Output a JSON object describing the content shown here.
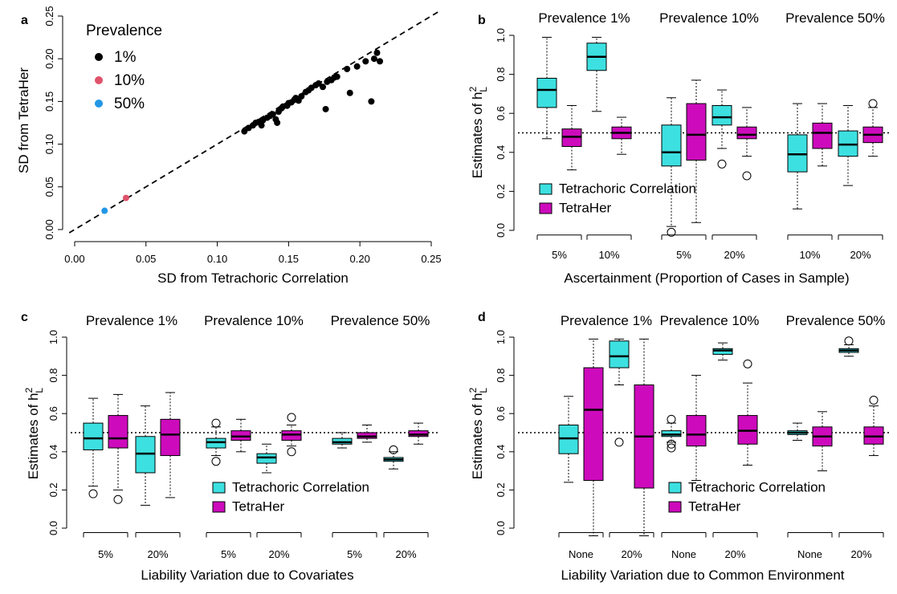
{
  "chart_data": [
    {
      "panel": "a",
      "type": "scatter",
      "xlabel": "SD from Tetrachoric Correlation",
      "ylabel": "SD from TetraHer",
      "xlim": [
        -0.0073,
        0.2562
      ],
      "ylim": [
        -0.0038,
        0.2594
      ],
      "xticks": [
        {
          "value": 0,
          "label": "0.00"
        },
        0.05,
        {
          "value": 0.1,
          "label": "0.10"
        },
        0.15,
        {
          "value": 0.2,
          "label": "0.20"
        },
        0.25
      ],
      "yticks": [
        {
          "value": 0,
          "label": "0.00"
        },
        0.05,
        {
          "value": 0.1,
          "label": "0.10"
        },
        0.15,
        {
          "value": 0.2,
          "label": "0.20"
        },
        0.25
      ],
      "diagonal": true,
      "legend_title": "Prevalence",
      "series": [
        {
          "name": "1%",
          "color": "#000000",
          "x": [
            0.119,
            0.122,
            0.125,
            0.127,
            0.129,
            0.131,
            0.132,
            0.135,
            0.137,
            0.139,
            0.141,
            0.142,
            0.143,
            0.145,
            0.146,
            0.149,
            0.15,
            0.152,
            0.154,
            0.155,
            0.157,
            0.159,
            0.162,
            0.164,
            0.166,
            0.169,
            0.171,
            0.174,
            0.176,
            0.177,
            0.18,
            0.182,
            0.184,
            0.191,
            0.193,
            0.198,
            0.204,
            0.208,
            0.21,
            0.212,
            0.214
          ],
          "y": [
            0.115,
            0.119,
            0.122,
            0.125,
            0.126,
            0.122,
            0.128,
            0.131,
            0.133,
            0.135,
            0.129,
            0.125,
            0.138,
            0.142,
            0.144,
            0.145,
            0.148,
            0.149,
            0.152,
            0.154,
            0.151,
            0.156,
            0.161,
            0.163,
            0.166,
            0.169,
            0.171,
            0.167,
            0.141,
            0.173,
            0.175,
            0.178,
            0.179,
            0.188,
            0.16,
            0.191,
            0.197,
            0.15,
            0.2,
            0.207,
            0.197
          ]
        },
        {
          "name": "10%",
          "color": "#DF536B",
          "x": [
            0.036
          ],
          "y": [
            0.037
          ]
        },
        {
          "name": "50%",
          "color": "#2297E6",
          "x": [
            0.021
          ],
          "y": [
            0.022
          ]
        }
      ]
    },
    {
      "panel": "b",
      "type": "boxplot",
      "xlabel": "Ascertainment (Proportion of Cases in Sample)",
      "ylabel": {
        "text": "Estimates of h",
        "sup": "2",
        "sub": "L"
      },
      "ylim": [
        -0.04,
        1.04
      ],
      "yticks": [
        {
          "value": 0,
          "label": "0.0"
        },
        0.2,
        0.4,
        0.6,
        0.8,
        {
          "value": 1,
          "label": "1.0"
        }
      ],
      "reference_line": 0.5,
      "groups": [
        "Prevalence 1%",
        "Prevalence 10%",
        "Prevalence 50%"
      ],
      "categories": [
        "5%",
        "10%",
        "5%",
        "20%",
        "10%",
        "20%"
      ],
      "series": [
        {
          "name": "Tetrachoric Correlation",
          "color": "#3DE0E0",
          "boxes": [
            {
              "whislo": 0.47,
              "q1": 0.63,
              "med": 0.72,
              "q3": 0.78,
              "whishi": 0.99
            },
            {
              "whislo": 0.61,
              "q1": 0.82,
              "med": 0.89,
              "q3": 0.96,
              "whishi": 0.99
            },
            {
              "whislo": 0.02,
              "q1": 0.33,
              "med": 0.4,
              "q3": 0.54,
              "whishi": 0.68,
              "fliers": [
                -0.01
              ]
            },
            {
              "whislo": 0.42,
              "q1": 0.54,
              "med": 0.58,
              "q3": 0.64,
              "whishi": 0.72,
              "fliers": [
                0.34
              ]
            },
            {
              "whislo": 0.11,
              "q1": 0.3,
              "med": 0.39,
              "q3": 0.49,
              "whishi": 0.65
            },
            {
              "whislo": 0.23,
              "q1": 0.38,
              "med": 0.44,
              "q3": 0.51,
              "whishi": 0.64
            }
          ]
        },
        {
          "name": "TetraHer",
          "color": "#CD0BBC",
          "boxes": [
            {
              "whislo": 0.31,
              "q1": 0.43,
              "med": 0.48,
              "q3": 0.52,
              "whishi": 0.64
            },
            {
              "whislo": 0.39,
              "q1": 0.47,
              "med": 0.5,
              "q3": 0.53,
              "whishi": 0.58
            },
            {
              "whislo": 0.04,
              "q1": 0.36,
              "med": 0.49,
              "q3": 0.65,
              "whishi": 0.77
            },
            {
              "whislo": 0.38,
              "q1": 0.47,
              "med": 0.49,
              "q3": 0.53,
              "whishi": 0.63,
              "fliers": [
                0.28
              ]
            },
            {
              "whislo": 0.33,
              "q1": 0.42,
              "med": 0.5,
              "q3": 0.55,
              "whishi": 0.65
            },
            {
              "whislo": 0.38,
              "q1": 0.45,
              "med": 0.49,
              "q3": 0.53,
              "whishi": 0.63,
              "fliers": [
                0.65
              ]
            }
          ]
        }
      ]
    },
    {
      "panel": "c",
      "type": "boxplot",
      "xlabel": "Liability Variation due to Covariates",
      "ylabel": {
        "text": "Estimates of h",
        "sup": "2",
        "sub": "L"
      },
      "ylim": [
        -0.04,
        1.04
      ],
      "yticks": [
        {
          "value": 0,
          "label": "0.0"
        },
        0.2,
        0.4,
        0.6,
        0.8,
        {
          "value": 1,
          "label": "1.0"
        }
      ],
      "reference_line": 0.5,
      "groups": [
        "Prevalence 1%",
        "Prevalence 10%",
        "Prevalence 50%"
      ],
      "categories": [
        "5%",
        "20%",
        "5%",
        "20%",
        "5%",
        "20%"
      ],
      "series": [
        {
          "name": "Tetrachoric Correlation",
          "color": "#3DE0E0",
          "boxes": [
            {
              "whislo": 0.22,
              "q1": 0.41,
              "med": 0.47,
              "q3": 0.55,
              "whishi": 0.68,
              "fliers": [
                0.18
              ]
            },
            {
              "whislo": 0.12,
              "q1": 0.29,
              "med": 0.39,
              "q3": 0.48,
              "whishi": 0.64
            },
            {
              "whislo": 0.38,
              "q1": 0.42,
              "med": 0.45,
              "q3": 0.47,
              "whishi": 0.53,
              "fliers": [
                0.35,
                0.55
              ]
            },
            {
              "whislo": 0.29,
              "q1": 0.34,
              "med": 0.37,
              "q3": 0.39,
              "whishi": 0.44
            },
            {
              "whislo": 0.42,
              "q1": 0.44,
              "med": 0.45,
              "q3": 0.47,
              "whishi": 0.5
            },
            {
              "whislo": 0.31,
              "q1": 0.35,
              "med": 0.36,
              "q3": 0.37,
              "whishi": 0.4,
              "fliers": [
                0.41
              ]
            }
          ]
        },
        {
          "name": "TetraHer",
          "color": "#CD0BBC",
          "boxes": [
            {
              "whislo": 0.2,
              "q1": 0.42,
              "med": 0.47,
              "q3": 0.59,
              "whishi": 0.7,
              "fliers": [
                0.15
              ]
            },
            {
              "whislo": 0.16,
              "q1": 0.38,
              "med": 0.49,
              "q3": 0.57,
              "whishi": 0.71
            },
            {
              "whislo": 0.4,
              "q1": 0.46,
              "med": 0.48,
              "q3": 0.51,
              "whishi": 0.57
            },
            {
              "whislo": 0.43,
              "q1": 0.46,
              "med": 0.49,
              "q3": 0.51,
              "whishi": 0.54,
              "fliers": [
                0.4,
                0.58
              ]
            },
            {
              "whislo": 0.45,
              "q1": 0.47,
              "med": 0.48,
              "q3": 0.5,
              "whishi": 0.54
            },
            {
              "whislo": 0.44,
              "q1": 0.48,
              "med": 0.49,
              "q3": 0.51,
              "whishi": 0.55
            }
          ]
        }
      ]
    },
    {
      "panel": "d",
      "type": "boxplot",
      "xlabel": "Liability Variation due to Common Environment",
      "ylabel": {
        "text": "Estimates of h",
        "sup": "2",
        "sub": "L"
      },
      "ylim": [
        -0.04,
        1.04
      ],
      "yticks": [
        {
          "value": 0,
          "label": "0.0"
        },
        0.2,
        0.4,
        0.6,
        0.8,
        {
          "value": 1,
          "label": "1.0"
        }
      ],
      "reference_line": 0.5,
      "groups": [
        "Prevalence 1%",
        "Prevalence 10%",
        "Prevalence 50%"
      ],
      "categories": [
        "None",
        "20%",
        "None",
        "20%",
        "None",
        "20%"
      ],
      "series": [
        {
          "name": "Tetrachoric Correlation",
          "color": "#3DE0E0",
          "boxes": [
            {
              "whislo": 0.24,
              "q1": 0.39,
              "med": 0.47,
              "q3": 0.54,
              "whishi": 0.69
            },
            {
              "whislo": 0.75,
              "q1": 0.84,
              "med": 0.9,
              "q3": 0.98,
              "whishi": 0.99,
              "fliers": [
                0.45
              ]
            },
            {
              "whislo": 0.45,
              "q1": 0.48,
              "med": 0.49,
              "q3": 0.51,
              "whishi": 0.55,
              "fliers": [
                0.42,
                0.44,
                0.57
              ]
            },
            {
              "whislo": 0.88,
              "q1": 0.91,
              "med": 0.93,
              "q3": 0.94,
              "whishi": 0.97
            },
            {
              "whislo": 0.46,
              "q1": 0.49,
              "med": 0.5,
              "q3": 0.51,
              "whishi": 0.55
            },
            {
              "whislo": 0.9,
              "q1": 0.92,
              "med": 0.93,
              "q3": 0.94,
              "whishi": 0.96,
              "fliers": [
                0.98
              ]
            }
          ]
        },
        {
          "name": "TetraHer",
          "color": "#CD0BBC",
          "boxes": [
            {
              "whislo": -0.04,
              "q1": 0.25,
              "med": 0.62,
              "q3": 0.84,
              "whishi": 0.99
            },
            {
              "whislo": -0.04,
              "q1": 0.21,
              "med": 0.48,
              "q3": 0.75,
              "whishi": 0.99
            },
            {
              "whislo": 0.25,
              "q1": 0.43,
              "med": 0.49,
              "q3": 0.59,
              "whishi": 0.8
            },
            {
              "whislo": 0.33,
              "q1": 0.44,
              "med": 0.51,
              "q3": 0.59,
              "whishi": 0.76,
              "fliers": [
                0.86
              ]
            },
            {
              "whislo": 0.3,
              "q1": 0.43,
              "med": 0.48,
              "q3": 0.53,
              "whishi": 0.61
            },
            {
              "whislo": 0.38,
              "q1": 0.44,
              "med": 0.48,
              "q3": 0.53,
              "whishi": 0.64,
              "fliers": [
                0.67
              ]
            }
          ]
        }
      ]
    }
  ]
}
